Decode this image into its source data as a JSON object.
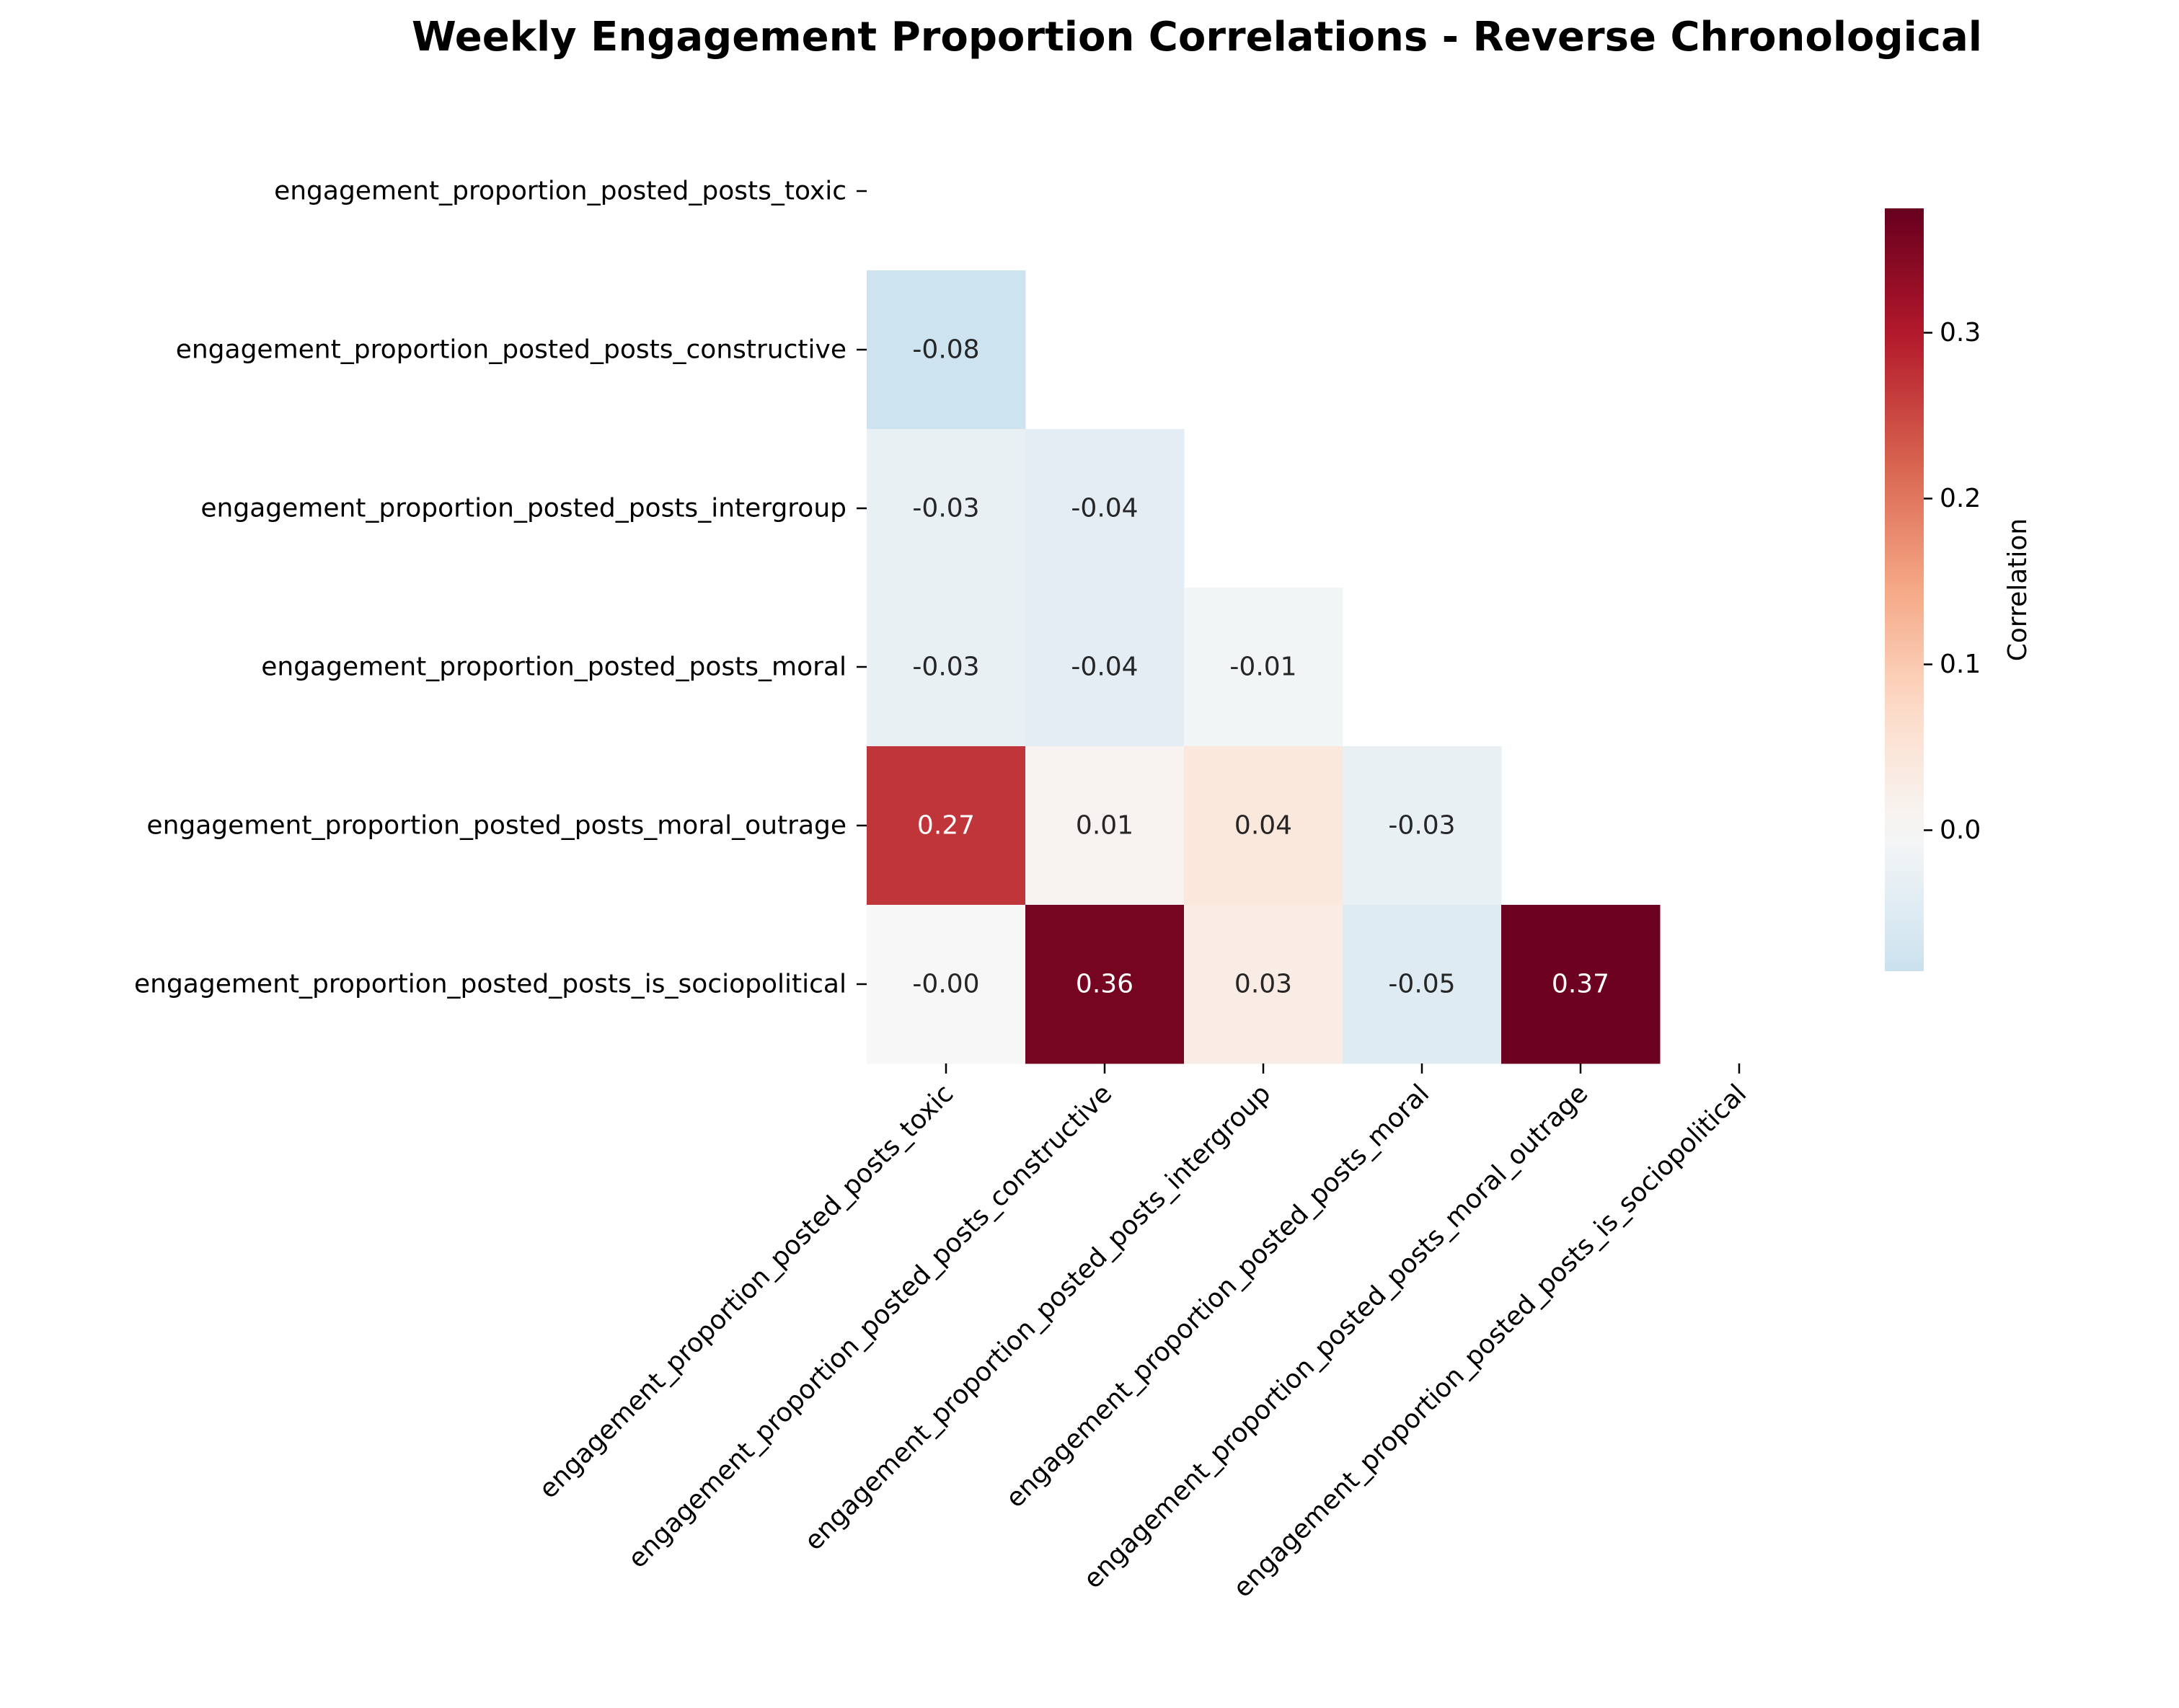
{
  "chart_data": {
    "type": "heatmap",
    "title": "Weekly Engagement Proportion Correlations - Reverse Chronological",
    "row_labels": [
      "engagement_proportion_posted_posts_toxic",
      "engagement_proportion_posted_posts_constructive",
      "engagement_proportion_posted_posts_intergroup",
      "engagement_proportion_posted_posts_moral",
      "engagement_proportion_posted_posts_moral_outrage",
      "engagement_proportion_posted_posts_is_sociopolitical"
    ],
    "col_labels": [
      "engagement_proportion_posted_posts_toxic",
      "engagement_proportion_posted_posts_constructive",
      "engagement_proportion_posted_posts_intergroup",
      "engagement_proportion_posted_posts_moral",
      "engagement_proportion_posted_posts_moral_outrage",
      "engagement_proportion_posted_posts_is_sociopolitical"
    ],
    "values": [
      [
        null,
        null,
        null,
        null,
        null,
        null
      ],
      [
        -0.08,
        null,
        null,
        null,
        null,
        null
      ],
      [
        -0.03,
        -0.04,
        null,
        null,
        null,
        null
      ],
      [
        -0.03,
        -0.04,
        -0.01,
        null,
        null,
        null
      ],
      [
        0.27,
        0.01,
        0.04,
        -0.03,
        null,
        null
      ],
      [
        -0.0,
        0.36,
        0.03,
        -0.05,
        0.37,
        null
      ]
    ],
    "display_values": [
      [
        null,
        null,
        null,
        null,
        null,
        null
      ],
      [
        "-0.08",
        null,
        null,
        null,
        null,
        null
      ],
      [
        "-0.03",
        "-0.04",
        null,
        null,
        null,
        null
      ],
      [
        "-0.03",
        "-0.04",
        "-0.01",
        null,
        null,
        null
      ],
      [
        "0.27",
        "0.01",
        "0.04",
        "-0.03",
        null,
        null
      ],
      [
        "-0.00",
        "0.36",
        "0.03",
        "-0.05",
        "0.37",
        null
      ]
    ],
    "mask": "upper-triangle-and-diagonal",
    "colormap": "RdBu_r",
    "center": 0.0,
    "vmin": -0.085,
    "vmax": 0.375,
    "colorbar": {
      "label": "Correlation",
      "ticks": [
        0.0,
        0.1,
        0.2,
        0.3
      ],
      "tick_labels": [
        "0.0",
        "0.1",
        "0.2",
        "0.3"
      ]
    }
  }
}
